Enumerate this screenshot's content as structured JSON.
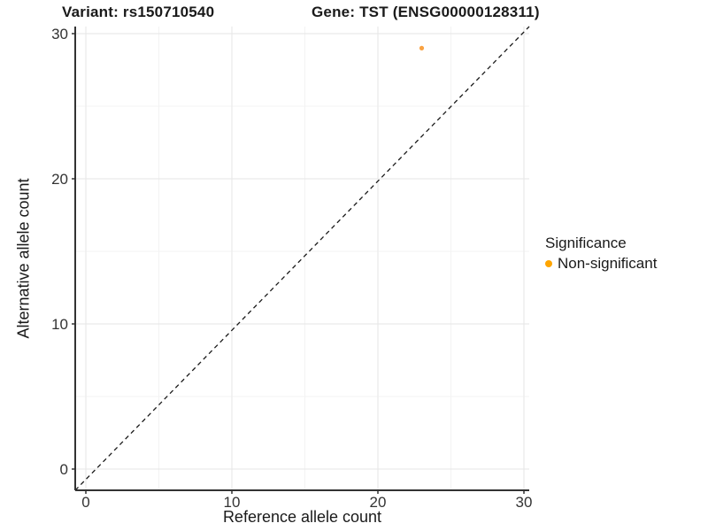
{
  "chart_data": {
    "type": "scatter",
    "title_left": "Variant: rs150710540",
    "title_right": "Gene: TST (ENSG00000128311)",
    "xlabel": "Reference allele count",
    "ylabel": "Alternative allele count",
    "xlim": [
      -1.5,
      31.5
    ],
    "ylim": [
      -1.5,
      31.5
    ],
    "xticks": [
      0,
      10,
      20,
      30
    ],
    "yticks": [
      0,
      10,
      20,
      30
    ],
    "minor_xticks": [
      5,
      15,
      25
    ],
    "minor_yticks": [
      5,
      15,
      25
    ],
    "grid": true,
    "identity_line": {
      "slope": 1,
      "intercept": 0,
      "style": "dashed",
      "color": "#1a1a1a"
    },
    "points": [
      {
        "x": 23,
        "y": 29,
        "series": "Non-significant",
        "color": "#F9A242"
      }
    ],
    "legend": {
      "title": "Significance",
      "position": "right",
      "entries": [
        {
          "label": "Non-significant",
          "color": "#FFA500"
        }
      ]
    },
    "style_colors": {
      "grid_major": "#E6E6E6",
      "grid_minor": "#F3F3F3",
      "axis_line": "#333333",
      "tick_mark": "#333333"
    }
  }
}
